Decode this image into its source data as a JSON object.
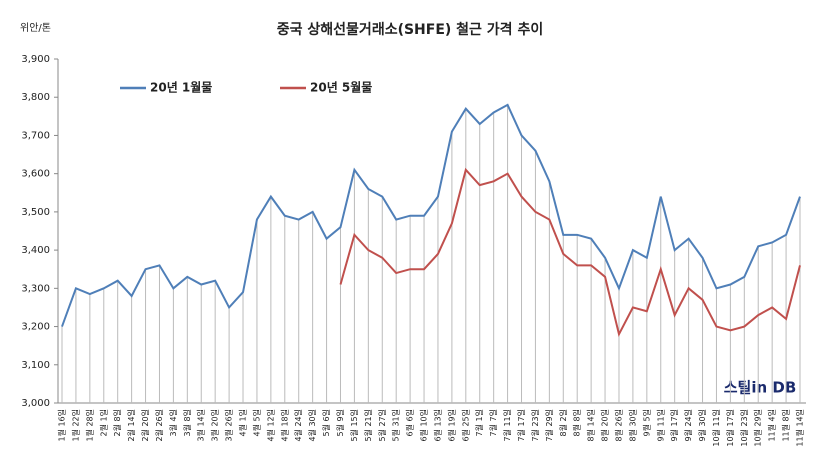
{
  "chart_data": {
    "type": "line",
    "title": "중국 상해선물거래소(SHFE) 철근 가격 추이",
    "y_label": "위안/톤",
    "logo": "스틸in DB",
    "categories": [
      "1월 16일",
      "1월 22일",
      "1월 28일",
      "2월 1일",
      "2월 8일",
      "2월 14일",
      "2월 20일",
      "2월 26일",
      "3월 4일",
      "3월 8일",
      "3월 14일",
      "3월 20일",
      "3월 26일",
      "4월 1일",
      "4월 5일",
      "4월 12일",
      "4월 18일",
      "4월 24일",
      "4월 30일",
      "5월 6일",
      "5월 9일",
      "5월 15일",
      "5월 21일",
      "5월 27일",
      "5월 31일",
      "6월 6일",
      "6월 10일",
      "6월 13일",
      "6월 19일",
      "6월 25일",
      "7월 1일",
      "7월 7일",
      "7월 11일",
      "7월 17일",
      "7월 23일",
      "7월 29일",
      "8월 2일",
      "8월 8일",
      "8월 14일",
      "8월 20일",
      "8월 26일",
      "8월 30일",
      "9월 5일",
      "9월 11일",
      "9월 17일",
      "9월 24일",
      "9월 30일",
      "10월 11일",
      "10월 17일",
      "10월 23일",
      "10월 29일",
      "11월 4일",
      "11월 8일",
      "11월 14일"
    ],
    "series": [
      {
        "name": "20년 1월물",
        "color": "#4f7fb8",
        "values": [
          3200,
          3300,
          3285,
          3300,
          3320,
          3280,
          3350,
          3360,
          3300,
          3330,
          3310,
          3320,
          3250,
          3290,
          3480,
          3540,
          3490,
          3480,
          3500,
          3430,
          3460,
          3610,
          3560,
          3540,
          3480,
          3490,
          3490,
          3540,
          3710,
          3770,
          3730,
          3760,
          3780,
          3700,
          3660,
          3580,
          3440,
          3440,
          3430,
          3380,
          3300,
          3400,
          3380,
          3540,
          3400,
          3430,
          3380,
          3300,
          3310,
          3330,
          3410,
          3420,
          3440,
          3540
        ]
      },
      {
        "name": "20년 5월물",
        "color": "#c0504d",
        "values": [
          null,
          null,
          null,
          null,
          null,
          null,
          null,
          null,
          null,
          null,
          null,
          null,
          null,
          null,
          null,
          null,
          null,
          null,
          null,
          null,
          3310,
          3440,
          3400,
          3380,
          3340,
          3350,
          3350,
          3390,
          3470,
          3610,
          3570,
          3580,
          3600,
          3540,
          3500,
          3480,
          3390,
          3360,
          3360,
          3330,
          3180,
          3250,
          3240,
          3350,
          3230,
          3300,
          3270,
          3200,
          3190,
          3200,
          3230,
          3250,
          3220,
          3360
        ]
      }
    ],
    "ylim": [
      3000,
      3900
    ],
    "yticks": [
      {
        "value": 3000,
        "label": "3,000"
      },
      {
        "value": 3100,
        "label": "3,100"
      },
      {
        "value": 3200,
        "label": "3,200"
      },
      {
        "value": 3300,
        "label": "3,300"
      },
      {
        "value": 3400,
        "label": "3,400"
      },
      {
        "value": 3500,
        "label": "3,500"
      },
      {
        "value": 3600,
        "label": "3,600"
      },
      {
        "value": 3700,
        "label": "3,700"
      },
      {
        "value": 3800,
        "label": "3,800"
      },
      {
        "value": 3900,
        "label": "3,900"
      }
    ],
    "drop_lines": true
  }
}
